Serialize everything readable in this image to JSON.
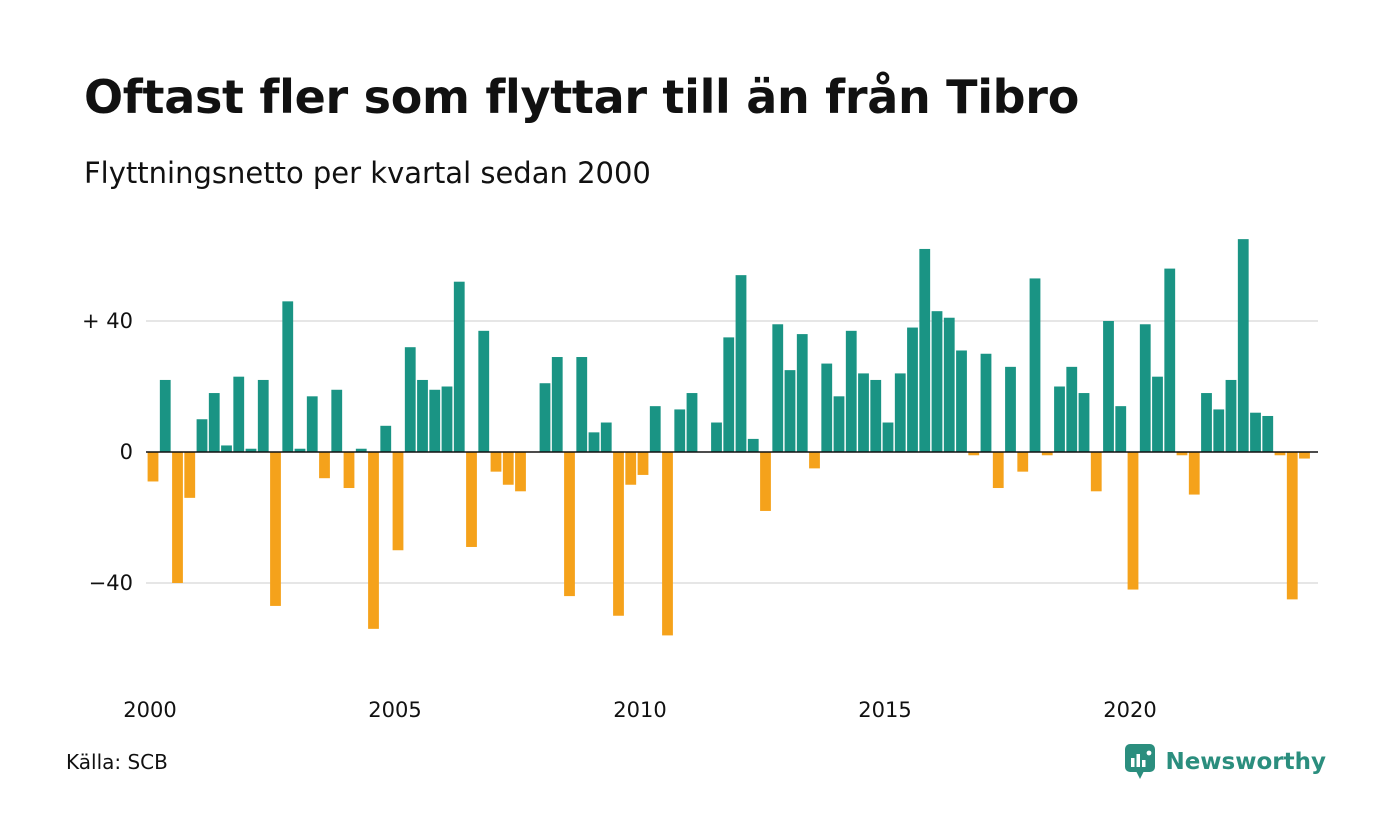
{
  "header": {
    "title": "Oftast fler som flyttar till än från Tibro",
    "subtitle": "Flyttningsnetto per kvartal sedan 2000"
  },
  "footer": {
    "source": "Källa: SCB",
    "brand": "Newsworthy"
  },
  "colors": {
    "positive": "#1a9484",
    "negative": "#f5a21b",
    "grid": "#dddddd",
    "brand": "#2b8e7e"
  },
  "chart_data": {
    "type": "bar",
    "x_start": "2000 Q1",
    "period": "quarter",
    "values": [
      -9,
      22,
      -40,
      -14,
      10,
      18,
      2,
      23,
      1,
      22,
      -47,
      46,
      1,
      17,
      -8,
      19,
      -11,
      1,
      -54,
      8,
      -30,
      32,
      22,
      19,
      20,
      52,
      -29,
      37,
      -6,
      -10,
      -12,
      0,
      21,
      29,
      -44,
      29,
      6,
      9,
      -50,
      -10,
      -7,
      14,
      -56,
      13,
      18,
      0,
      9,
      35,
      54,
      4,
      -18,
      39,
      25,
      36,
      -5,
      27,
      17,
      37,
      24,
      22,
      9,
      24,
      38,
      62,
      43,
      41,
      31,
      -1,
      30,
      -11,
      26,
      -6,
      53,
      -1,
      20,
      26,
      18,
      -12,
      40,
      14,
      -42,
      39,
      23,
      56,
      -1,
      -13,
      18,
      13,
      22,
      65,
      12,
      11,
      -1,
      -45,
      -2
    ],
    "x_ticks": [
      "2000",
      "2005",
      "2010",
      "2015",
      "2020"
    ],
    "y_ticks": [
      {
        "value": 40,
        "label": "+ 40"
      },
      {
        "value": 0,
        "label": "0"
      },
      {
        "value": -40,
        "label": "−40"
      }
    ],
    "ylim": [
      -70,
      72
    ],
    "grid": true
  }
}
